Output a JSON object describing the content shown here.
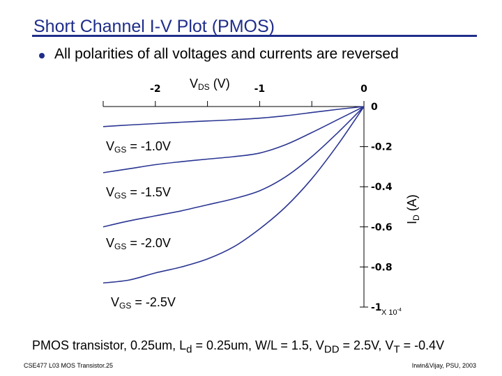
{
  "slide": {
    "title": "Short Channel I-V Plot (PMOS)",
    "bullet": "All polarities of all voltages and currents are reversed",
    "caption_parts": {
      "p1": "PMOS transistor, 0.25um, L",
      "sub1": "d",
      "p2": " = 0.25um, W/L = 1.5, V",
      "sub2": "DD",
      "p3": " = 2.5V, V",
      "sub3": "T",
      "p4": " = -0.4V"
    },
    "footer_left": "CSE477  L03 MOS Transistor.25",
    "footer_right": "Irwin&Vijay, PSU, 2003",
    "accent_color": "#1f2d8a",
    "curve_color": "#2a3592"
  },
  "chart_data": {
    "type": "line",
    "title": "",
    "xlabel": {
      "main": "V",
      "sub": "DS",
      "unit": " (V)"
    },
    "ylabel": {
      "main": "I",
      "sub": "D",
      "unit": " (A)"
    },
    "xlim": [
      -2.5,
      0
    ],
    "ylim": [
      -1.0,
      0
    ],
    "x_ticks": [
      -2.5,
      -2,
      -1.5,
      -1,
      -0.5,
      0
    ],
    "x_tick_labels": [
      {
        "value": -2,
        "text": "-2"
      },
      {
        "value": -1,
        "text": "-1"
      },
      {
        "value": 0,
        "text": "0"
      }
    ],
    "y_ticks": [
      {
        "value": 0,
        "text": "0"
      },
      {
        "value": -0.2,
        "text": "-0.2"
      },
      {
        "value": -0.4,
        "text": "-0.4"
      },
      {
        "value": -0.6,
        "text": "-0.6"
      },
      {
        "value": -0.8,
        "text": "-0.8"
      },
      {
        "value": -1.0,
        "text": "-1"
      }
    ],
    "y_scale_note": {
      "main": "X 10",
      "exp": "-4"
    },
    "grid": false,
    "series": [
      {
        "name": "V_GS = -1.0V",
        "label_parts": {
          "main": "V",
          "sub": "GS",
          "rest": " = -1.0V"
        },
        "x": [
          -2.5,
          -2.25,
          -2.0,
          -1.75,
          -1.5,
          -1.25,
          -1.0,
          -0.75,
          -0.5,
          -0.25,
          0
        ],
        "y": [
          -0.1,
          -0.092,
          -0.085,
          -0.078,
          -0.072,
          -0.066,
          -0.058,
          -0.046,
          -0.03,
          -0.014,
          0
        ]
      },
      {
        "name": "V_GS = -1.5V",
        "label_parts": {
          "main": "V",
          "sub": "GS",
          "rest": " = -1.5V"
        },
        "x": [
          -2.5,
          -2.25,
          -2.0,
          -1.75,
          -1.5,
          -1.25,
          -1.0,
          -0.75,
          -0.5,
          -0.25,
          0
        ],
        "y": [
          -0.33,
          -0.31,
          -0.29,
          -0.275,
          -0.262,
          -0.25,
          -0.232,
          -0.19,
          -0.13,
          -0.065,
          0
        ]
      },
      {
        "name": "V_GS = -2.0V",
        "label_parts": {
          "main": "V",
          "sub": "GS",
          "rest": " = -2.0V"
        },
        "x": [
          -2.5,
          -2.25,
          -2.0,
          -1.75,
          -1.5,
          -1.25,
          -1.0,
          -0.75,
          -0.5,
          -0.25,
          0
        ],
        "y": [
          -0.6,
          -0.57,
          -0.545,
          -0.52,
          -0.49,
          -0.46,
          -0.42,
          -0.35,
          -0.25,
          -0.13,
          0
        ]
      },
      {
        "name": "V_GS = -2.5V",
        "label_parts": {
          "main": "V",
          "sub": "GS",
          "rest": " = -2.5V"
        },
        "x": [
          -2.5,
          -2.25,
          -2.0,
          -1.75,
          -1.5,
          -1.25,
          -1.0,
          -0.75,
          -0.5,
          -0.25,
          0
        ],
        "y": [
          -0.88,
          -0.865,
          -0.83,
          -0.8,
          -0.76,
          -0.7,
          -0.61,
          -0.5,
          -0.36,
          -0.19,
          0
        ]
      }
    ]
  }
}
